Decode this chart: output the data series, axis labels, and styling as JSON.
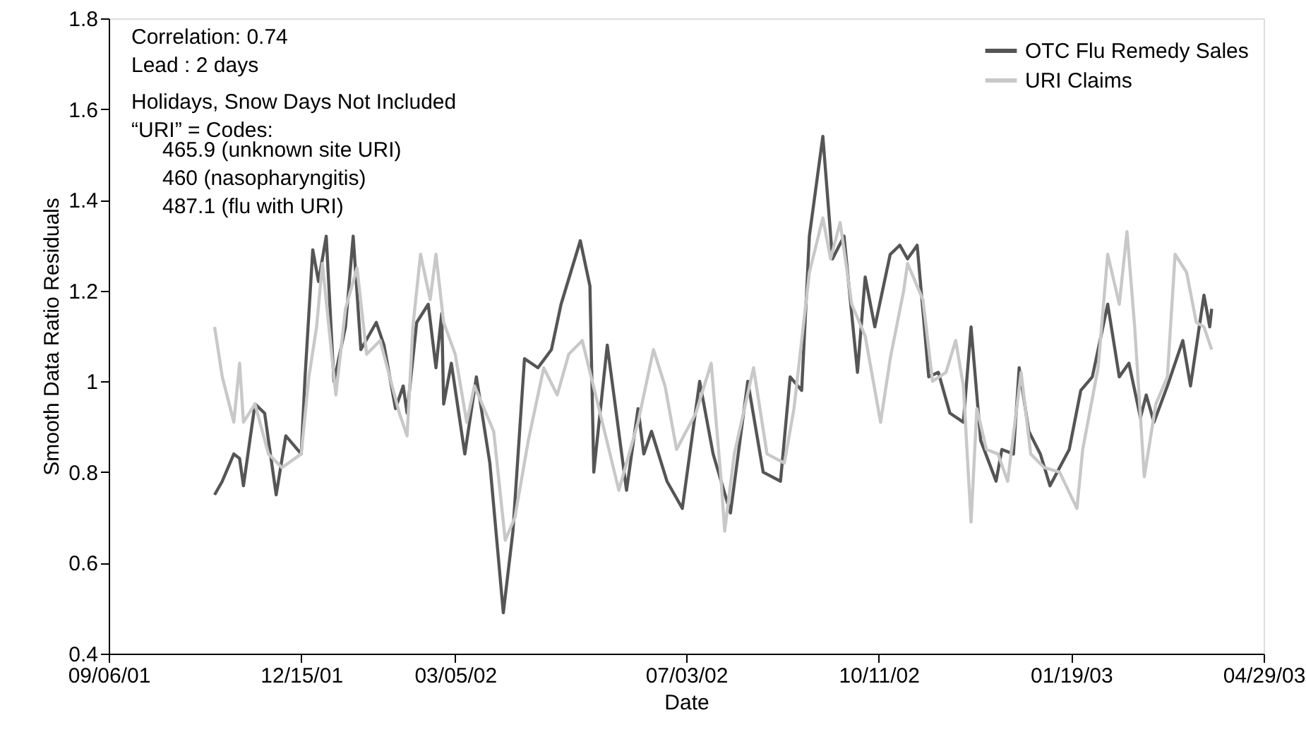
{
  "chart_data": {
    "type": "line",
    "xlabel": "Date",
    "ylabel": "Smooth Data Ratio Residuals",
    "xlim": [
      "2001-09-06",
      "2003-04-29"
    ],
    "xticks": [
      {
        "value": "2001-09-06",
        "label": "09/06/01"
      },
      {
        "value": "2001-12-15",
        "label": "12/15/01"
      },
      {
        "value": "2002-03-05",
        "label": "03/05/02"
      },
      {
        "value": "2002-07-03",
        "label": "07/03/02"
      },
      {
        "value": "2002-10-11",
        "label": "10/11/02"
      },
      {
        "value": "2003-01-19",
        "label": "01/19/03"
      },
      {
        "value": "2003-04-29",
        "label": "04/29/03"
      }
    ],
    "ylim": [
      0.4,
      1.8
    ],
    "yticks": [
      0.4,
      0.6,
      0.8,
      1,
      1.2,
      1.4,
      1.6,
      1.8
    ],
    "grid": false,
    "legend": "top right",
    "marker": "none",
    "line_style": "solid",
    "annotations": [
      "Correlation: 0.74",
      "Lead : 2 days",
      "Holidays, Snow Days Not Included",
      "“URI” = Codes:",
      "465.9 (unknown site URI)",
      "460 (nasopharyngitis)",
      "487.1 (flu with URI)"
    ],
    "series": [
      {
        "name": "OTC Flu Remedy Sales",
        "color": "#555555",
        "x": [
          "2001-10-31",
          "2001-11-04",
          "2001-11-10",
          "2001-11-13",
          "2001-11-15",
          "2001-11-21",
          "2001-11-26",
          "2001-12-02",
          "2001-12-07",
          "2001-12-15",
          "2001-12-17",
          "2001-12-21",
          "2001-12-24",
          "2001-12-28",
          "2002-01-01",
          "2002-01-07",
          "2002-01-11",
          "2002-01-15",
          "2002-01-23",
          "2002-01-27",
          "2002-02-02",
          "2002-02-06",
          "2002-02-08",
          "2002-02-13",
          "2002-02-19",
          "2002-02-23",
          "2002-02-26",
          "2002-02-27",
          "2002-03-03",
          "2002-03-10",
          "2002-03-16",
          "2002-03-23",
          "2002-03-30",
          "2002-04-04",
          "2002-04-10",
          "2002-04-17",
          "2002-04-24",
          "2002-04-29",
          "2002-05-09",
          "2002-05-14",
          "2002-05-16",
          "2002-05-23",
          "2002-06-02",
          "2002-06-08",
          "2002-06-11",
          "2002-06-15",
          "2002-06-23",
          "2002-07-01",
          "2002-07-10",
          "2002-07-17",
          "2002-07-26",
          "2002-08-04",
          "2002-08-12",
          "2002-08-21",
          "2002-08-26",
          "2002-09-01",
          "2002-09-05",
          "2002-09-12",
          "2002-09-17",
          "2002-09-23",
          "2002-09-30",
          "2002-10-04",
          "2002-10-09",
          "2002-10-17",
          "2002-10-22",
          "2002-10-26",
          "2002-10-31",
          "2002-11-06",
          "2002-11-11",
          "2002-11-17",
          "2002-11-24",
          "2002-11-28",
          "2002-12-03",
          "2002-12-11",
          "2002-12-14",
          "2002-12-20",
          "2002-12-23",
          "2002-12-28",
          "2003-01-03",
          "2003-01-08",
          "2003-01-18",
          "2003-01-24",
          "2003-01-30",
          "2003-02-07",
          "2003-02-13",
          "2003-02-18",
          "2003-02-24",
          "2003-02-27",
          "2003-03-03",
          "2003-03-10",
          "2003-03-18",
          "2003-03-22",
          "2003-03-29",
          "2003-04-01",
          "2003-04-02"
        ],
        "values": [
          0.75,
          0.78,
          0.84,
          0.83,
          0.77,
          0.95,
          0.93,
          0.75,
          0.88,
          0.84,
          1.01,
          1.29,
          1.22,
          1.32,
          1.0,
          1.12,
          1.32,
          1.07,
          1.13,
          1.08,
          0.94,
          0.99,
          0.93,
          1.13,
          1.17,
          1.03,
          1.15,
          0.95,
          1.04,
          0.84,
          1.01,
          0.82,
          0.49,
          0.67,
          1.05,
          1.03,
          1.07,
          1.17,
          1.31,
          1.21,
          0.8,
          1.08,
          0.76,
          0.94,
          0.84,
          0.89,
          0.78,
          0.72,
          1.0,
          0.84,
          0.71,
          1.0,
          0.8,
          0.78,
          1.01,
          0.98,
          1.32,
          1.54,
          1.27,
          1.32,
          1.02,
          1.23,
          1.12,
          1.28,
          1.3,
          1.27,
          1.3,
          1.01,
          1.02,
          0.93,
          0.91,
          1.12,
          0.87,
          0.78,
          0.85,
          0.84,
          1.03,
          0.89,
          0.84,
          0.77,
          0.85,
          0.98,
          1.01,
          1.17,
          1.01,
          1.04,
          0.92,
          0.97,
          0.91,
          0.99,
          1.09,
          0.99,
          1.19,
          1.12,
          1.16
        ]
      },
      {
        "name": "URI Claims",
        "color": "#c8c8c8",
        "x": [
          "2001-10-31",
          "2001-11-04",
          "2001-11-10",
          "2001-11-13",
          "2001-11-15",
          "2001-11-21",
          "2001-11-28",
          "2001-12-05",
          "2001-12-15",
          "2001-12-19",
          "2001-12-23",
          "2001-12-26",
          "2002-01-02",
          "2002-01-07",
          "2002-01-13",
          "2002-01-18",
          "2002-01-25",
          "2002-02-04",
          "2002-02-08",
          "2002-02-11",
          "2002-02-15",
          "2002-02-20",
          "2002-02-23",
          "2002-02-27",
          "2002-03-05",
          "2002-03-11",
          "2002-03-15",
          "2002-03-25",
          "2002-03-31",
          "2002-04-05",
          "2002-04-12",
          "2002-04-20",
          "2002-04-27",
          "2002-05-03",
          "2002-05-10",
          "2002-05-21",
          "2002-05-29",
          "2002-06-08",
          "2002-06-16",
          "2002-06-22",
          "2002-06-28",
          "2002-07-08",
          "2002-07-16",
          "2002-07-21",
          "2002-07-23",
          "2002-07-28",
          "2002-08-07",
          "2002-08-14",
          "2002-08-23",
          "2002-08-28",
          "2002-09-05",
          "2002-09-12",
          "2002-09-16",
          "2002-09-21",
          "2002-09-27",
          "2002-10-04",
          "2002-10-12",
          "2002-10-17",
          "2002-10-24",
          "2002-10-26",
          "2002-11-03",
          "2002-11-08",
          "2002-11-15",
          "2002-11-20",
          "2002-11-24",
          "2002-11-28",
          "2002-12-01",
          "2002-12-06",
          "2002-12-12",
          "2002-12-17",
          "2002-12-24",
          "2002-12-29",
          "2003-01-05",
          "2003-01-13",
          "2003-01-22",
          "2003-01-25",
          "2003-02-02",
          "2003-02-07",
          "2003-02-13",
          "2003-02-17",
          "2003-02-21",
          "2003-02-26",
          "2003-03-04",
          "2003-03-10",
          "2003-03-14",
          "2003-03-20",
          "2003-03-25",
          "2003-03-29",
          "2003-04-02"
        ],
        "values": [
          1.12,
          1.01,
          0.91,
          1.04,
          0.91,
          0.95,
          0.84,
          0.81,
          0.84,
          1.01,
          1.12,
          1.26,
          0.97,
          1.16,
          1.25,
          1.06,
          1.09,
          0.93,
          0.88,
          1.12,
          1.28,
          1.18,
          1.28,
          1.13,
          1.06,
          0.91,
          0.99,
          0.89,
          0.65,
          0.7,
          0.87,
          1.03,
          0.97,
          1.06,
          1.09,
          0.9,
          0.76,
          0.91,
          1.07,
          0.99,
          0.85,
          0.93,
          1.04,
          0.79,
          0.67,
          0.84,
          1.03,
          0.84,
          0.82,
          0.94,
          1.24,
          1.36,
          1.27,
          1.35,
          1.17,
          1.1,
          0.91,
          1.05,
          1.2,
          1.26,
          1.18,
          1.0,
          1.02,
          1.09,
          0.99,
          0.69,
          0.94,
          0.85,
          0.84,
          0.78,
          1.02,
          0.84,
          0.81,
          0.8,
          0.72,
          0.85,
          1.03,
          1.28,
          1.17,
          1.33,
          1.12,
          0.79,
          0.95,
          1.01,
          1.28,
          1.24,
          1.13,
          1.12,
          1.07
        ]
      }
    ]
  }
}
